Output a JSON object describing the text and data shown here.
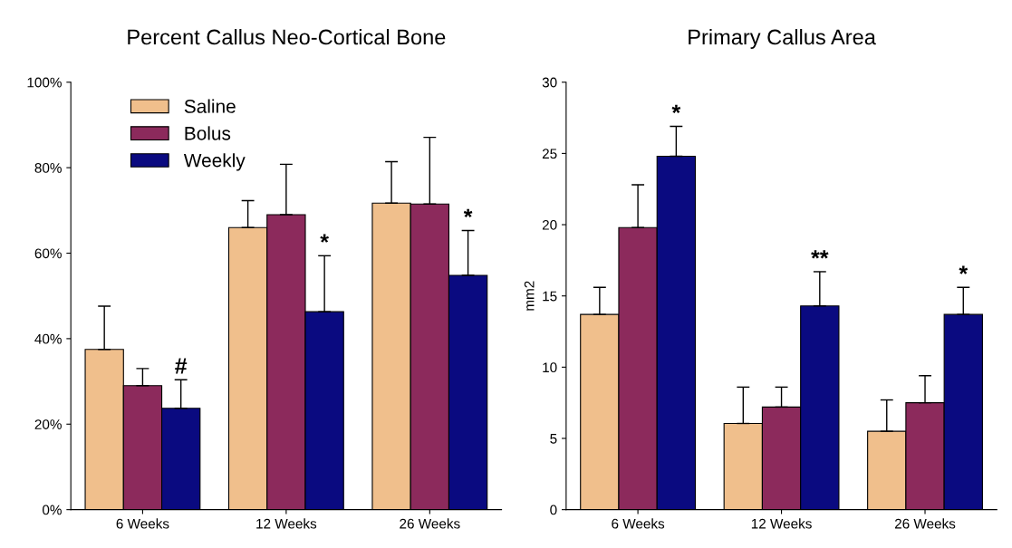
{
  "chart_data": [
    {
      "type": "bar",
      "title": "Percent Callus Neo-Cortical Bone",
      "categories": [
        "6 Weeks",
        "12 Weeks",
        "26 Weeks"
      ],
      "series": [
        {
          "name": "Saline",
          "color": "#f0bf8c",
          "values": [
            37.5,
            66,
            71.7
          ],
          "errors": [
            [
              37.5,
              47.6
            ],
            [
              66,
              72.3
            ],
            [
              71.7,
              81.4
            ]
          ]
        },
        {
          "name": "Bolus",
          "color": "#8c2a5c",
          "values": [
            29,
            69,
            71.5
          ],
          "errors": [
            [
              29,
              33
            ],
            [
              69,
              80.8
            ],
            [
              71.5,
              87.1
            ]
          ]
        },
        {
          "name": "Weekly",
          "color": "#0a0a80",
          "values": [
            23.7,
            46.3,
            54.8
          ],
          "errors": [
            [
              23.7,
              30.4
            ],
            [
              46.3,
              59.4
            ],
            [
              54.8,
              65.3
            ]
          ]
        }
      ],
      "ylim": [
        0,
        100
      ],
      "yticks": [
        {
          "value": 0,
          "label": "0%"
        },
        {
          "value": 20,
          "label": "20%"
        },
        {
          "value": 40,
          "label": "40%"
        },
        {
          "value": 60,
          "label": "60%"
        },
        {
          "value": 80,
          "label": "80%"
        },
        {
          "value": 100,
          "label": "100%"
        }
      ],
      "annotations": [
        "#",
        "*",
        "*"
      ],
      "legend": "top left",
      "grid": false
    },
    {
      "type": "bar",
      "title": "Primary Callus Area",
      "ylabel": "mm2",
      "categories": [
        "6 Weeks",
        "12 Weeks",
        "26 Weeks"
      ],
      "series": [
        {
          "color": "#f0bf8c",
          "values": [
            13.7,
            6.05,
            5.5
          ],
          "errors": [
            [
              13.7,
              15.6
            ],
            [
              6.05,
              8.6
            ],
            [
              5.5,
              7.7
            ]
          ]
        },
        {
          "color": "#8c2a5c",
          "values": [
            19.8,
            7.2,
            7.5
          ],
          "errors": [
            [
              19.8,
              22.8
            ],
            [
              7.2,
              8.6
            ],
            [
              7.5,
              9.4
            ]
          ]
        },
        {
          "color": "#0a0a80",
          "values": [
            24.8,
            14.3,
            13.7
          ],
          "errors": [
            [
              24.8,
              26.9
            ],
            [
              14.3,
              16.7
            ],
            [
              13.7,
              15.6
            ]
          ]
        }
      ],
      "ylim": [
        0,
        30
      ],
      "yticks": [
        0,
        5,
        10,
        15,
        20,
        25,
        30
      ],
      "annotations": [
        "*",
        "**",
        "*"
      ],
      "legend": false,
      "grid": false
    }
  ]
}
